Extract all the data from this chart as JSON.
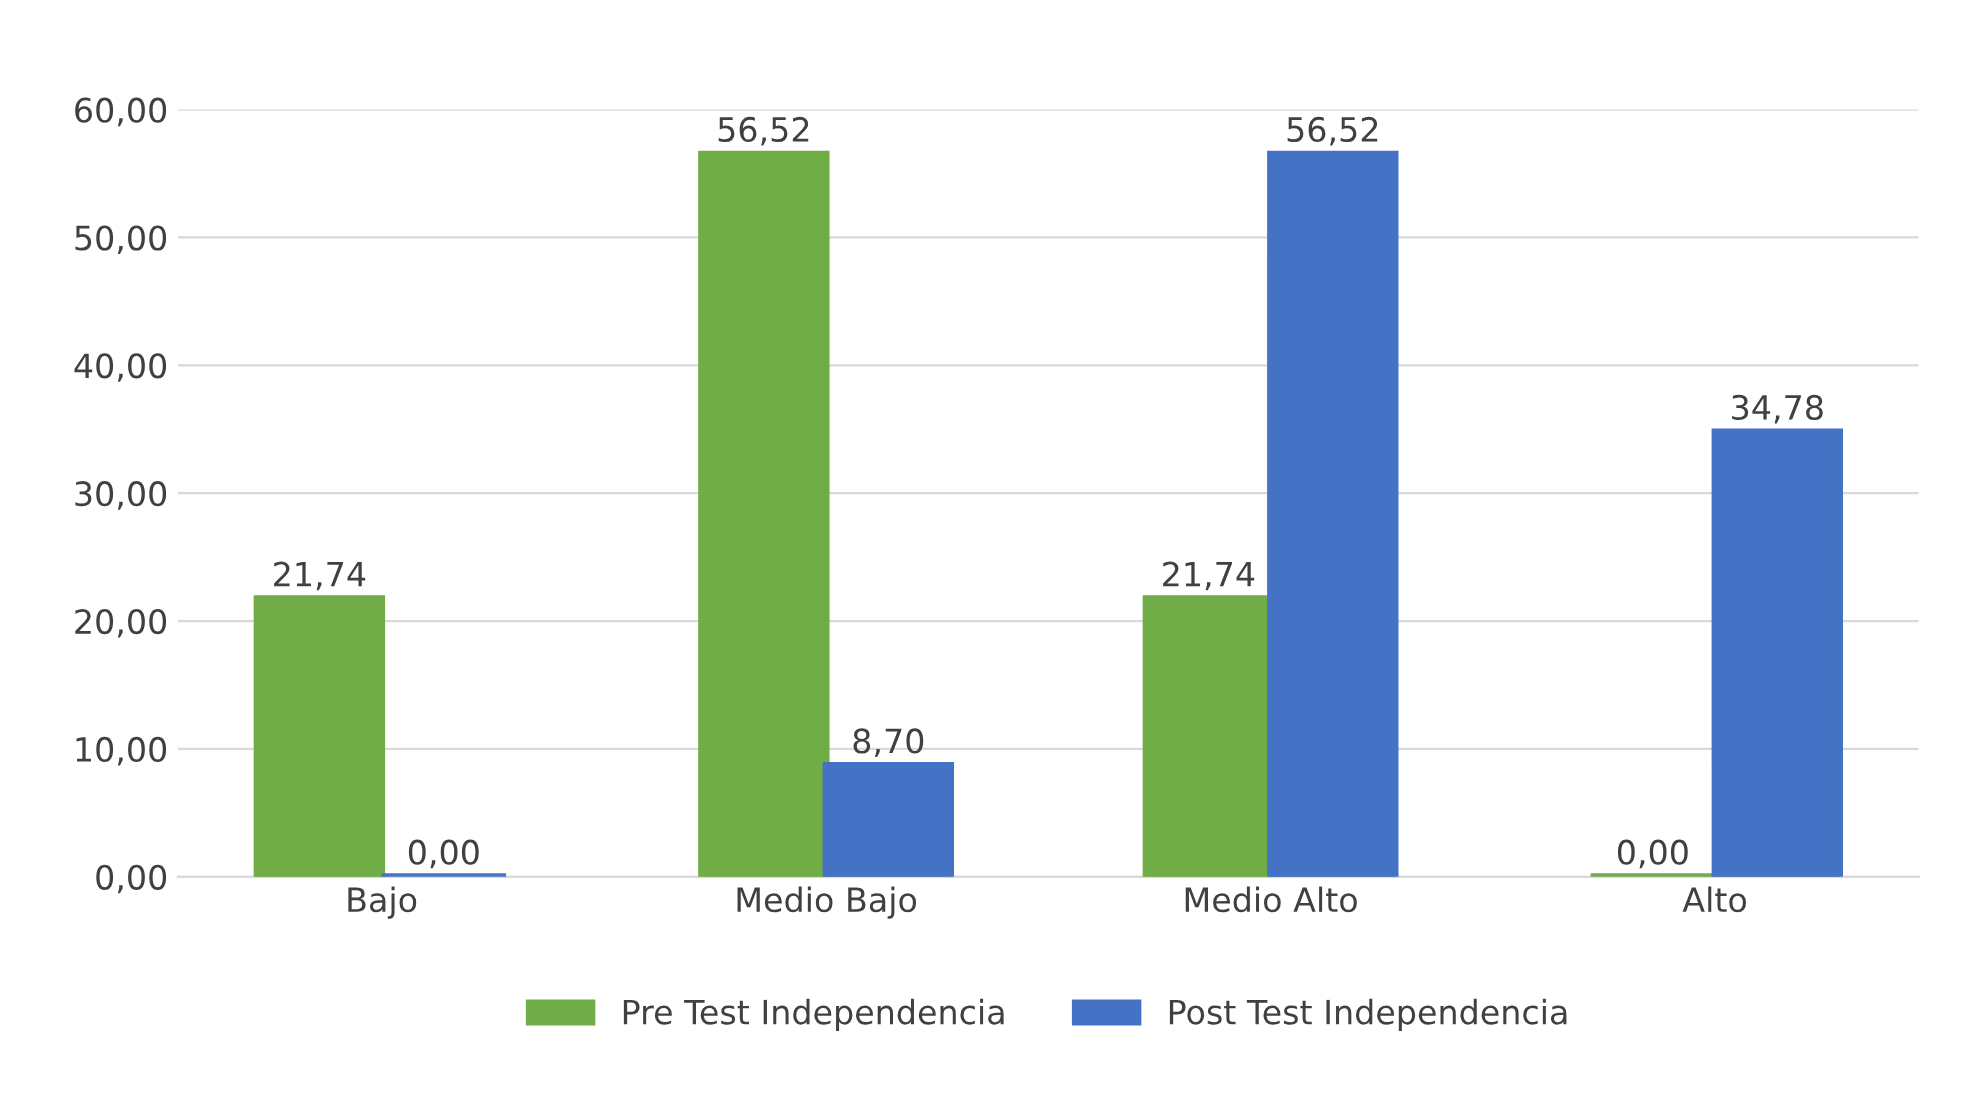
{
  "chart_data": {
    "type": "bar",
    "categories": [
      "Bajo",
      "Medio Bajo",
      "Medio Alto",
      "Alto"
    ],
    "series": [
      {
        "name": "Pre Test Independencia",
        "color": "#70ad47",
        "values": [
          21.74,
          56.52,
          21.74,
          0.0
        ],
        "value_labels": [
          "21,74",
          "56,52",
          "21,74",
          "0,00"
        ]
      },
      {
        "name": "Post Test Independencia",
        "color": "#4472c4",
        "values": [
          0.0,
          8.7,
          56.52,
          34.78
        ],
        "value_labels": [
          "0,00",
          "8,70",
          "56,52",
          "34,78"
        ]
      }
    ],
    "ylim": [
      0,
      60
    ],
    "yticks": [
      {
        "value": 0,
        "label": "0,00"
      },
      {
        "value": 10,
        "label": "10,00"
      },
      {
        "value": 20,
        "label": "20,00"
      },
      {
        "value": 30,
        "label": "30,00"
      },
      {
        "value": 40,
        "label": "40,00"
      },
      {
        "value": 50,
        "label": "50,00"
      },
      {
        "value": 60,
        "label": "60,00"
      }
    ],
    "grid": "y",
    "legend": "bottom"
  }
}
